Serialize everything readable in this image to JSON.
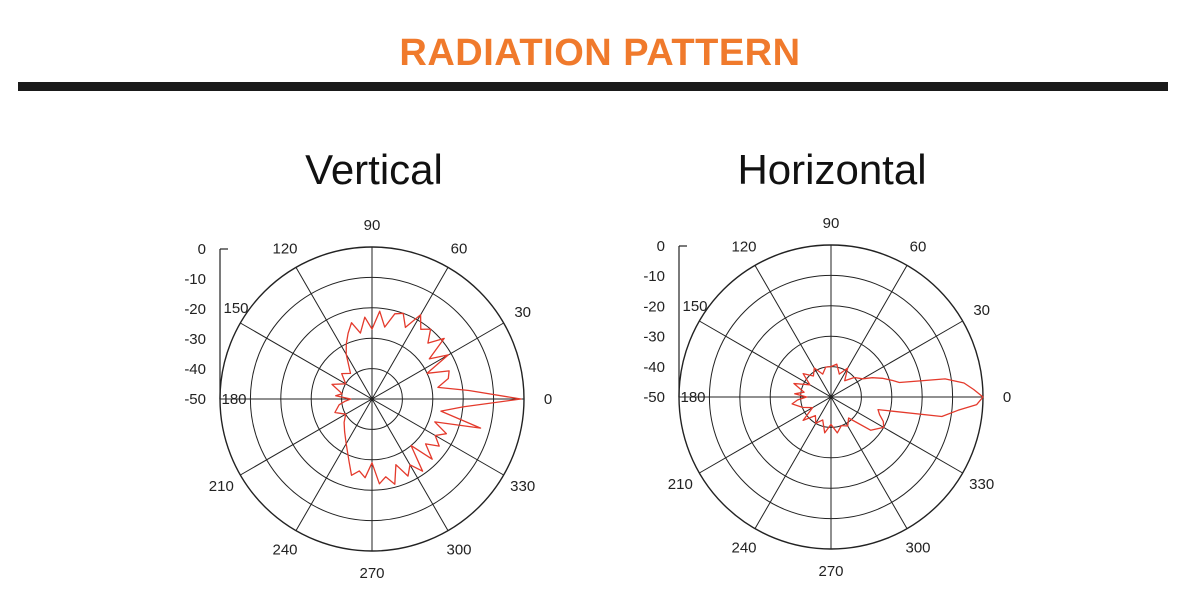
{
  "page": {
    "title": "RADIATION PATTERN",
    "accent_color": "#f07a2c",
    "rule_color": "#1a1a1a",
    "trace_color": "#e43a2c"
  },
  "chart_data": [
    {
      "type": "polar",
      "title": "Vertical",
      "angle_ticks": [
        90,
        60,
        30,
        0,
        330,
        300,
        270,
        240,
        210,
        180,
        150,
        120
      ],
      "radial_ticks": [
        0,
        -10,
        -20,
        -30,
        -40,
        -50
      ],
      "rlim": [
        -50,
        0
      ],
      "grid": true,
      "series": [
        {
          "angles_deg": [
            0,
            5,
            10,
            15,
            20,
            25,
            30,
            35,
            40,
            45,
            50,
            55,
            60,
            65,
            70,
            75,
            80,
            85,
            90,
            95,
            100,
            105,
            110,
            115,
            120,
            130,
            140,
            150,
            160,
            170,
            175,
            180,
            185,
            190,
            200,
            210,
            220,
            230,
            240,
            250,
            255,
            260,
            265,
            270,
            275,
            280,
            285,
            290,
            295,
            300,
            305,
            310,
            315,
            320,
            325,
            330,
            335,
            340,
            345,
            350,
            355
          ],
          "values_db": [
            -1,
            -18,
            -28,
            -24,
            -23,
            -30,
            -21,
            -27,
            -19,
            -24,
            -20,
            -22,
            -18,
            -24,
            -20,
            -21,
            -26,
            -21,
            -27,
            -23,
            -28,
            -24,
            -27,
            -30,
            -33,
            -39,
            -37,
            -40,
            -36,
            -40,
            -38,
            -43,
            -41,
            -39,
            -37,
            -40,
            -38,
            -36,
            -33,
            -28,
            -24,
            -26,
            -24,
            -29,
            -22,
            -24,
            -21,
            -27,
            -22,
            -25,
            -21,
            -30,
            -22,
            -27,
            -23,
            -26,
            -23,
            -28,
            -13,
            -27,
            -20
          ]
        }
      ]
    },
    {
      "type": "polar",
      "title": "Horizontal",
      "angle_ticks": [
        90,
        60,
        30,
        0,
        330,
        300,
        270,
        240,
        210,
        180,
        150,
        120
      ],
      "radial_ticks": [
        0,
        -10,
        -20,
        -30,
        -40,
        -50
      ],
      "rlim": [
        -50,
        0
      ],
      "grid": true,
      "series": [
        {
          "angles_deg": [
            0,
            3,
            6,
            9,
            12,
            15,
            20,
            25,
            30,
            40,
            50,
            60,
            70,
            80,
            90,
            100,
            110,
            120,
            130,
            140,
            150,
            160,
            170,
            175,
            180,
            185,
            190,
            200,
            210,
            220,
            230,
            240,
            250,
            260,
            270,
            280,
            290,
            300,
            310,
            320,
            330,
            335,
            340,
            345,
            350,
            354,
            357
          ],
          "values_db": [
            0,
            -3,
            -6,
            -12,
            -27,
            -29,
            -32,
            -35,
            -38,
            -40,
            -43,
            -39,
            -42,
            -39,
            -40,
            -40,
            -42,
            -39,
            -41,
            -38,
            -42,
            -37,
            -41,
            -38,
            -42,
            -39,
            -37,
            -40,
            -43,
            -38,
            -42,
            -40,
            -42,
            -38,
            -41,
            -38,
            -40,
            -39,
            -41,
            -33,
            -30,
            -31,
            -33,
            -34,
            -13,
            -8,
            -2
          ]
        }
      ]
    }
  ]
}
